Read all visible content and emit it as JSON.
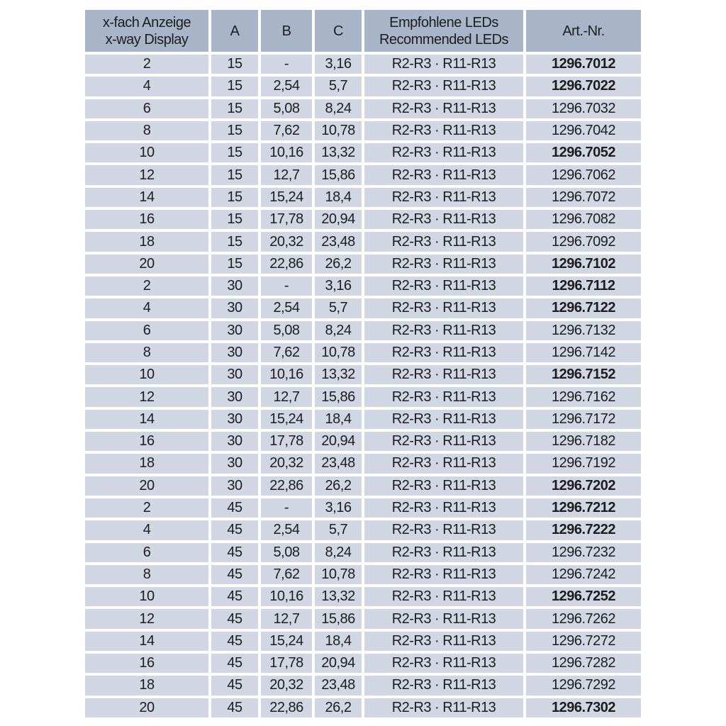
{
  "colors": {
    "header_bg": "#a8b5c8",
    "row_bg": "#d1d7e2",
    "text": "#1d1d1f",
    "page_bg": "#ffffff"
  },
  "table": {
    "header": {
      "xway_line1": "x-fach Anzeige",
      "xway_line2": "x-way Display",
      "a": "A",
      "b": "B",
      "c": "C",
      "leds_line1": "Empfohlene LEDs",
      "leds_line2": "Recommended LEDs",
      "artnr": "Art.-Nr."
    },
    "rows": [
      {
        "x": "2",
        "a": "15",
        "b": "-",
        "c": "3,16",
        "leds": "R2-R3 · R11-R13",
        "art": "1296.7012",
        "bold": true
      },
      {
        "x": "4",
        "a": "15",
        "b": "2,54",
        "c": "5,7",
        "leds": "R2-R3 · R11-R13",
        "art": "1296.7022",
        "bold": true
      },
      {
        "x": "6",
        "a": "15",
        "b": "5,08",
        "c": "8,24",
        "leds": "R2-R3 · R11-R13",
        "art": "1296.7032",
        "bold": false
      },
      {
        "x": "8",
        "a": "15",
        "b": "7,62",
        "c": "10,78",
        "leds": "R2-R3 · R11-R13",
        "art": "1296.7042",
        "bold": false
      },
      {
        "x": "10",
        "a": "15",
        "b": "10,16",
        "c": "13,32",
        "leds": "R2-R3 · R11-R13",
        "art": "1296.7052",
        "bold": true
      },
      {
        "x": "12",
        "a": "15",
        "b": "12,7",
        "c": "15,86",
        "leds": "R2-R3 · R11-R13",
        "art": "1296.7062",
        "bold": false
      },
      {
        "x": "14",
        "a": "15",
        "b": "15,24",
        "c": "18,4",
        "leds": "R2-R3 · R11-R13",
        "art": "1296.7072",
        "bold": false
      },
      {
        "x": "16",
        "a": "15",
        "b": "17,78",
        "c": "20,94",
        "leds": "R2-R3 · R11-R13",
        "art": "1296.7082",
        "bold": false
      },
      {
        "x": "18",
        "a": "15",
        "b": "20,32",
        "c": "23,48",
        "leds": "R2-R3 · R11-R13",
        "art": "1296.7092",
        "bold": false
      },
      {
        "x": "20",
        "a": "15",
        "b": "22,86",
        "c": "26,2",
        "leds": "R2-R3 · R11-R13",
        "art": "1296.7102",
        "bold": true
      },
      {
        "x": "2",
        "a": "30",
        "b": "-",
        "c": "3,16",
        "leds": "R2-R3 · R11-R13",
        "art": "1296.7112",
        "bold": true
      },
      {
        "x": "4",
        "a": "30",
        "b": "2,54",
        "c": "5,7",
        "leds": "R2-R3 · R11-R13",
        "art": "1296.7122",
        "bold": true
      },
      {
        "x": "6",
        "a": "30",
        "b": "5,08",
        "c": "8,24",
        "leds": "R2-R3 · R11-R13",
        "art": "1296.7132",
        "bold": false
      },
      {
        "x": "8",
        "a": "30",
        "b": "7,62",
        "c": "10,78",
        "leds": "R2-R3 · R11-R13",
        "art": "1296.7142",
        "bold": false
      },
      {
        "x": "10",
        "a": "30",
        "b": "10,16",
        "c": "13,32",
        "leds": "R2-R3 · R11-R13",
        "art": "1296.7152",
        "bold": true
      },
      {
        "x": "12",
        "a": "30",
        "b": "12,7",
        "c": "15,86",
        "leds": "R2-R3 · R11-R13",
        "art": "1296.7162",
        "bold": false
      },
      {
        "x": "14",
        "a": "30",
        "b": "15,24",
        "c": "18,4",
        "leds": "R2-R3 · R11-R13",
        "art": "1296.7172",
        "bold": false
      },
      {
        "x": "16",
        "a": "30",
        "b": "17,78",
        "c": "20,94",
        "leds": "R2-R3 · R11-R13",
        "art": "1296.7182",
        "bold": false
      },
      {
        "x": "18",
        "a": "30",
        "b": "20,32",
        "c": "23,48",
        "leds": "R2-R3 · R11-R13",
        "art": "1296.7192",
        "bold": false
      },
      {
        "x": "20",
        "a": "30",
        "b": "22,86",
        "c": "26,2",
        "leds": "R2-R3 · R11-R13",
        "art": "1296.7202",
        "bold": true
      },
      {
        "x": "2",
        "a": "45",
        "b": "-",
        "c": "3,16",
        "leds": "R2-R3 · R11-R13",
        "art": "1296.7212",
        "bold": true
      },
      {
        "x": "4",
        "a": "45",
        "b": "2,54",
        "c": "5,7",
        "leds": "R2-R3 · R11-R13",
        "art": "1296.7222",
        "bold": true
      },
      {
        "x": "6",
        "a": "45",
        "b": "5,08",
        "c": "8,24",
        "leds": "R2-R3 · R11-R13",
        "art": "1296.7232",
        "bold": false
      },
      {
        "x": "8",
        "a": "45",
        "b": "7,62",
        "c": "10,78",
        "leds": "R2-R3 · R11-R13",
        "art": "1296.7242",
        "bold": false
      },
      {
        "x": "10",
        "a": "45",
        "b": "10,16",
        "c": "13,32",
        "leds": "R2-R3 · R11-R13",
        "art": "1296.7252",
        "bold": true
      },
      {
        "x": "12",
        "a": "45",
        "b": "12,7",
        "c": "15,86",
        "leds": "R2-R3 · R11-R13",
        "art": "1296.7262",
        "bold": false
      },
      {
        "x": "14",
        "a": "45",
        "b": "15,24",
        "c": "18,4",
        "leds": "R2-R3 · R11-R13",
        "art": "1296.7272",
        "bold": false
      },
      {
        "x": "16",
        "a": "45",
        "b": "17,78",
        "c": "20,94",
        "leds": "R2-R3 · R11-R13",
        "art": "1296.7282",
        "bold": false
      },
      {
        "x": "18",
        "a": "45",
        "b": "20,32",
        "c": "23,48",
        "leds": "R2-R3 · R11-R13",
        "art": "1296.7292",
        "bold": false
      },
      {
        "x": "20",
        "a": "45",
        "b": "22,86",
        "c": "26,2",
        "leds": "R2-R3 · R11-R13",
        "art": "1296.7302",
        "bold": true
      }
    ]
  }
}
